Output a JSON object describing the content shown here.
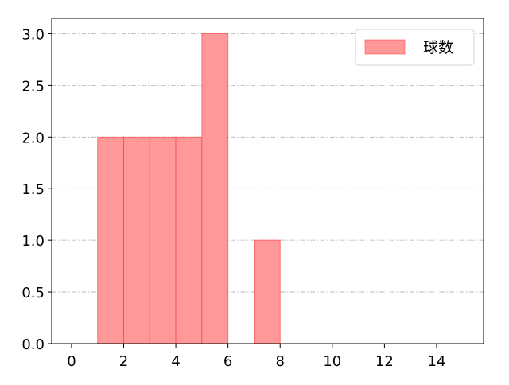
{
  "chart_data": {
    "type": "bar",
    "subtype": "histogram",
    "bins": [
      [
        1,
        2
      ],
      [
        2,
        3
      ],
      [
        3,
        4
      ],
      [
        4,
        5
      ],
      [
        5,
        6
      ],
      [
        7,
        8
      ]
    ],
    "series": [
      {
        "name": "球数",
        "values": [
          2,
          2,
          2,
          2,
          3,
          1
        ]
      }
    ],
    "title": "",
    "xlabel": "",
    "ylabel": "",
    "xlim": [
      -0.76,
      15.8
    ],
    "ylim": [
      0,
      3.15
    ],
    "xticks": [
      0,
      2,
      4,
      6,
      8,
      10,
      12,
      14
    ],
    "yticks": [
      0.0,
      0.5,
      1.0,
      1.5,
      2.0,
      2.5,
      3.0
    ],
    "xtick_labels": [
      "0",
      "2",
      "4",
      "6",
      "8",
      "10",
      "12",
      "14"
    ],
    "ytick_labels": [
      "0.0",
      "0.5",
      "1.0",
      "1.5",
      "2.0",
      "2.5",
      "3.0"
    ],
    "grid": "horizontal dash-dot",
    "legend": {
      "placement": "top-right",
      "entries": [
        "球数"
      ]
    },
    "colors": {
      "bar_fill": "#ff9999",
      "bar_edge": "#ff3333",
      "grid": "#b0b0b0"
    }
  }
}
